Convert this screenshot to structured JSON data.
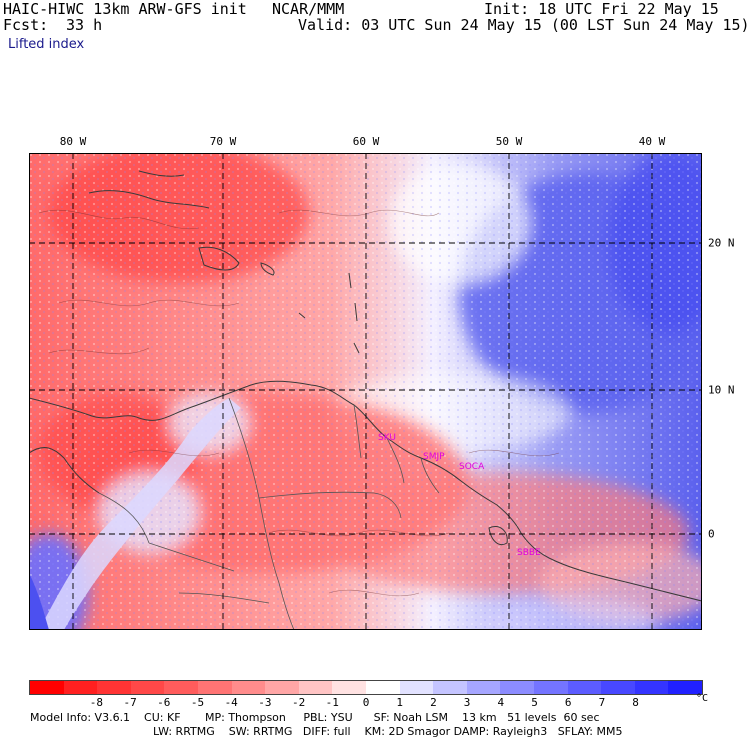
{
  "header": {
    "title_left": "HAIC-HIWC 13km ARW-GFS init",
    "org": "NCAR/MMM",
    "init": "Init: 18 UTC Fri 22 May 15",
    "fcst_label": "Fcst:",
    "fcst_value": "33 h",
    "valid": "Valid: 03 UTC Sun 24 May 15 (00 LST Sun 24 May 15)",
    "field": "Lifted index"
  },
  "longitude_labels": [
    "80 W",
    "70 W",
    "60 W",
    "50 W",
    "40 W"
  ],
  "latitude_labels": [
    "20 N",
    "10 N",
    "0"
  ],
  "sites": [
    "SKU",
    "SMJP",
    "SOCA",
    "SBBE"
  ],
  "colorbar": {
    "ticks": [
      "-8",
      "-7",
      "-6",
      "-5",
      "-4",
      "-3",
      "-2",
      "-1",
      "0",
      "1",
      "2",
      "3",
      "4",
      "5",
      "6",
      "7",
      "8"
    ],
    "unit": "°C",
    "colors": [
      "#ff0000",
      "#ff2020",
      "#ff3434",
      "#ff4848",
      "#ff5c5c",
      "#ff7474",
      "#ff8c8c",
      "#ffa6a6",
      "#ffc4c4",
      "#ffe2e2",
      "#ffffff",
      "#e2e2ff",
      "#c4c4ff",
      "#a6a6ff",
      "#8c8cff",
      "#7474ff",
      "#5c5cff",
      "#4848ff",
      "#3434ff",
      "#2020ff"
    ]
  },
  "footer": {
    "line1": "Model Info: V3.6.1    CU: KF       MP: Thompson     PBL: YSU      SF: Noah LSM    13 km   51 levels  60 sec",
    "line2": "LW: RRTMG    SW: RRTMG   DIFF: full    KM: 2D Smagor DAMP: Rayleigh3   SFLAY: MM5"
  },
  "colors": {
    "continent_outline": "#3a3a3a",
    "grid": "#000000",
    "site_labels": "#e000e0"
  }
}
